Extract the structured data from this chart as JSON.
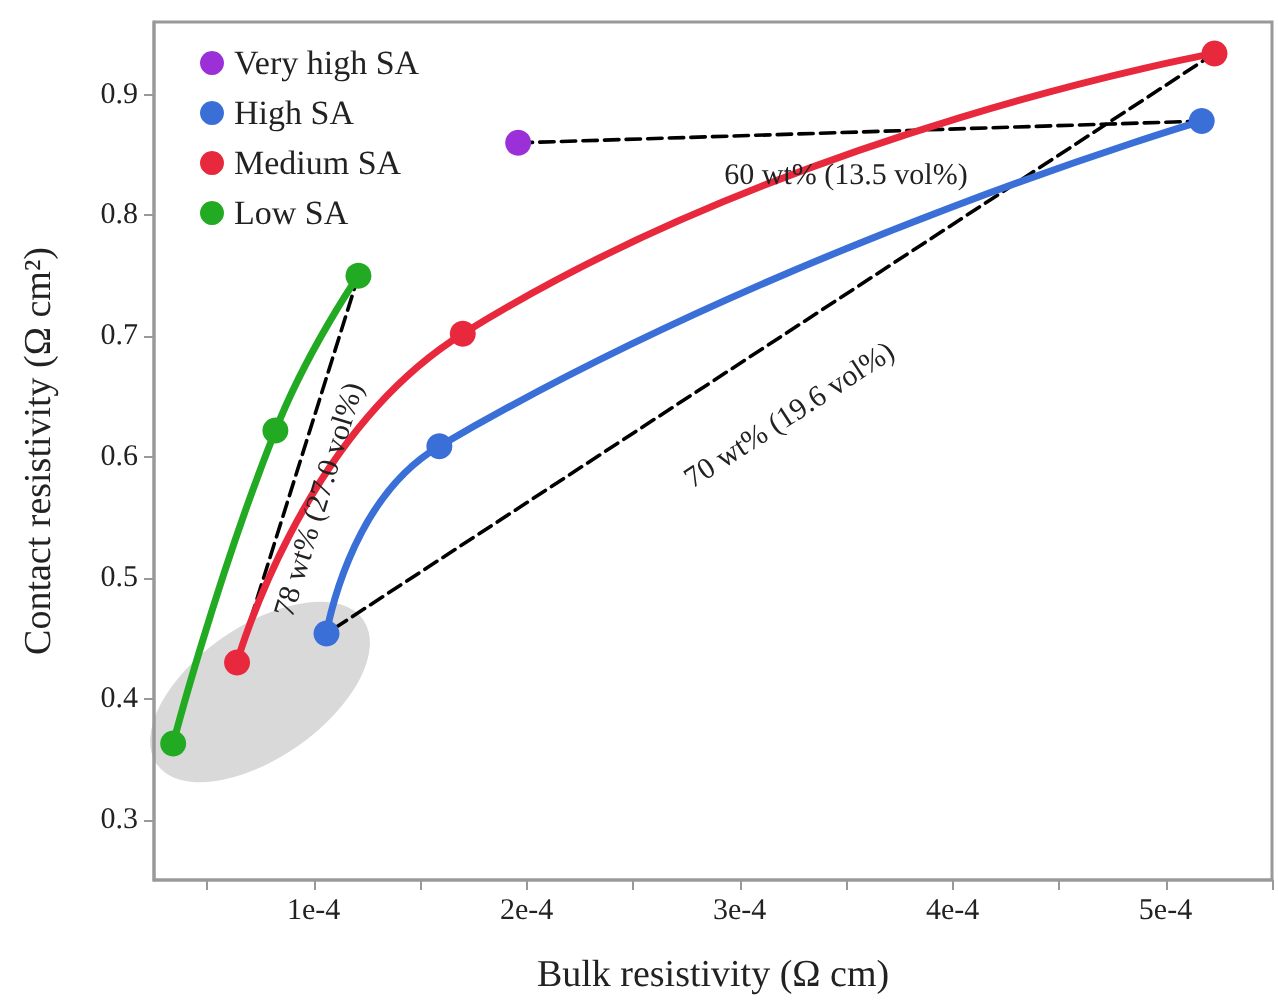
{
  "chart_data": {
    "type": "line",
    "xlabel": "Bulk resistivity (Ω cm)",
    "ylabel": "Contact resistivity (Ω cm²)",
    "xlim": [
      2.5e-05,
      0.00055
    ],
    "ylim": [
      0.25,
      0.96
    ],
    "xticks": [
      {
        "value": 5e-05,
        "label": null
      },
      {
        "value": 0.0001,
        "label": "1e-4"
      },
      {
        "value": 0.00015,
        "label": null
      },
      {
        "value": 0.0002,
        "label": "2e-4"
      },
      {
        "value": 0.00025,
        "label": null
      },
      {
        "value": 0.0003,
        "label": "3e-4"
      },
      {
        "value": 0.00035,
        "label": null
      },
      {
        "value": 0.0004,
        "label": "4e-4"
      },
      {
        "value": 0.00045,
        "label": null
      },
      {
        "value": 0.0005,
        "label": "5e-4"
      },
      {
        "value": 0.00055,
        "label": null
      }
    ],
    "yticks": [
      0.3,
      0.4,
      0.5,
      0.6,
      0.7,
      0.8,
      0.9
    ],
    "grid": false,
    "legend": "top left",
    "marker": "circle",
    "series": [
      {
        "name": "Very high SA",
        "color": "#9b30d9",
        "x": [
          0.000196
        ],
        "values": [
          0.86
        ]
      },
      {
        "name": "High SA",
        "color": "#3a6fd8",
        "x": [
          0.000106,
          0.000159,
          0.000517
        ],
        "values": [
          0.454,
          0.609,
          0.878
        ]
      },
      {
        "name": "Medium SA",
        "color": "#e8283c",
        "x": [
          6.4e-05,
          0.00017,
          0.000523
        ],
        "values": [
          0.43,
          0.702,
          0.934
        ]
      },
      {
        "name": "Low SA",
        "color": "#22aa22",
        "x": [
          3.4e-05,
          8.2e-05,
          0.000121
        ],
        "values": [
          0.363,
          0.622,
          0.75
        ]
      },
      {
        "color": "#000000",
        "line_style": "dashed",
        "marker": "none",
        "x": [
          0.000196,
          0.000517
        ],
        "values": [
          0.86,
          0.878
        ]
      },
      {
        "color": "#000000",
        "line_style": "dashed",
        "marker": "none",
        "x": [
          0.000523,
          0.000106
        ],
        "values": [
          0.934,
          0.454
        ]
      },
      {
        "color": "#000000",
        "line_style": "dashed",
        "marker": "none",
        "x": [
          0.000121,
          6.4e-05
        ],
        "values": [
          0.75,
          0.43
        ]
      }
    ],
    "annotations": [
      "60 wt% (13.5 vol%)",
      "70 wt% (19.6 vol%)",
      "78 wt% (27.0 vol%)"
    ]
  }
}
